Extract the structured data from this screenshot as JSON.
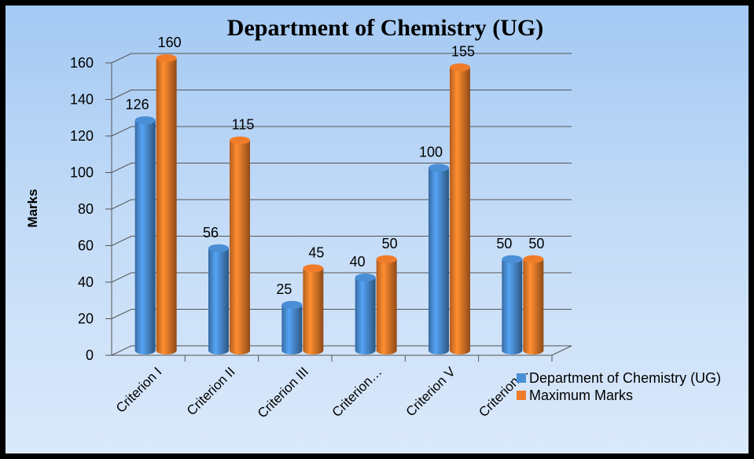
{
  "chart_data": {
    "type": "bar3d",
    "title": "Department of Chemistry (UG)",
    "y_label": "Marks",
    "categories": [
      "Criterion I",
      "Criterion II",
      "Criterion III",
      "Criterion…",
      "Criterion V",
      "Criterion…"
    ],
    "series": [
      {
        "name": "Department of Chemistry (UG)",
        "color": "#4a8fd6",
        "values": [
          126,
          56,
          25,
          40,
          100,
          50
        ]
      },
      {
        "name": "Maximum Marks",
        "color": "#f07c2a",
        "values": [
          160,
          115,
          45,
          50,
          155,
          50
        ]
      }
    ],
    "ylim": [
      0,
      160
    ],
    "yticks": [
      0,
      20,
      40,
      60,
      80,
      100,
      120,
      140,
      160
    ],
    "grid": true,
    "legend": "right"
  }
}
